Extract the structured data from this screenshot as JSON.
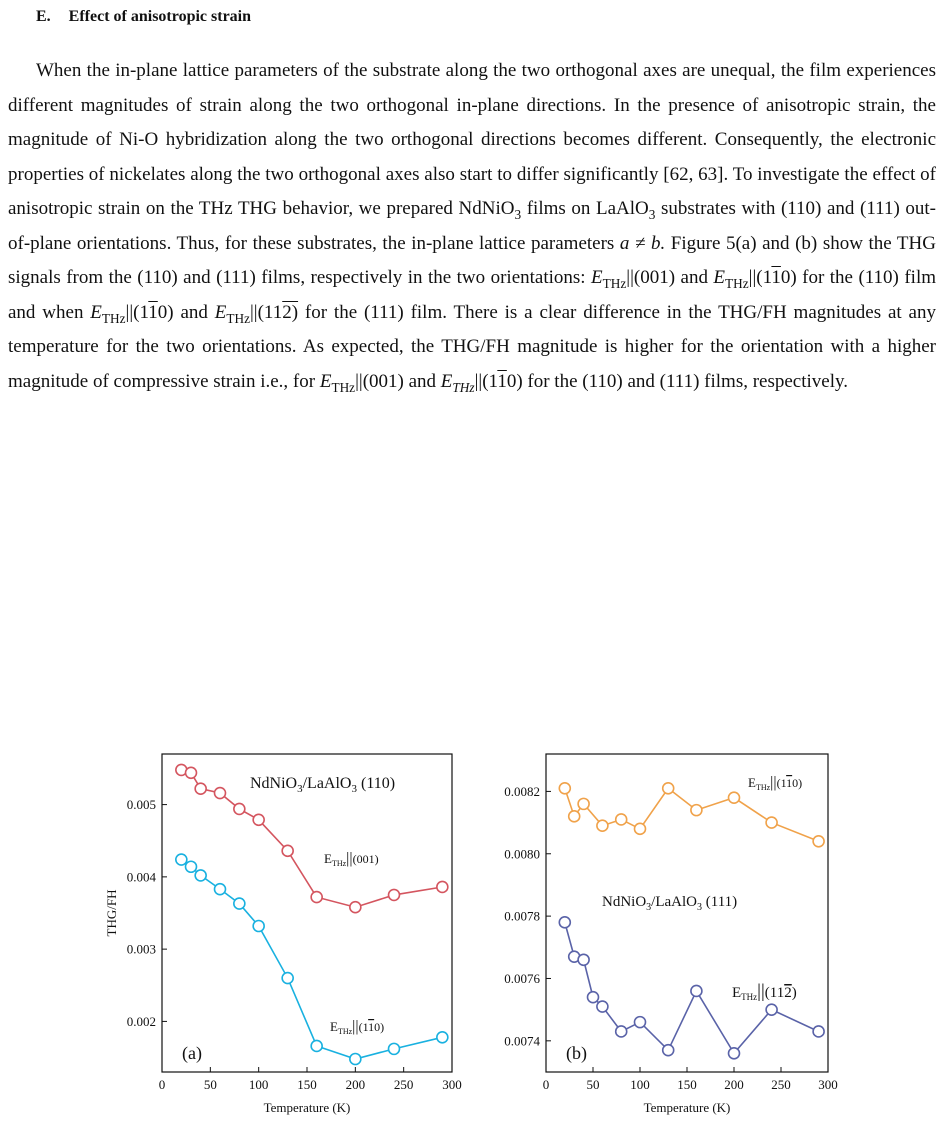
{
  "section": {
    "number": "E.",
    "title": "Effect of anisotropic strain"
  },
  "paragraph": {
    "s1": "When the in-plane lattice parameters of the substrate along the two orthogonal axes are unequal, the film experiences different magnitudes of strain along the two orthogonal in-plane directions. In the presence of anisotropic strain, the magnitude of Ni-O hybridization along the two orthogonal directions becomes different. Consequently, the electronic properties of nickelates along the two orthogonal axes also start to differ significantly [62, 63]. To investigate the effect of anisotropic strain on the THz THG behavior, we prepared NdNiO",
    "s2": " films on LaAlO",
    "s3": " substrates with (110) and (111) out-of-plane orientations. Thus, for these substrates, the in-plane lattice parameters ",
    "s4": " Figure 5(a) and (b) show the THG signals from the (110) and (111) films, respectively in the two orientations: ",
    "s5": "||(001) and ",
    "s6": " for the (110) film and when ",
    "s7": " and ",
    "s8": " for the (111) film. There is a clear difference in the THG/FH magnitudes at any temperature for the two orientations. As expected, the THG/FH magnitude is higher for the orientation with a higher magnitude of compressive strain i.e., for ",
    "s9": "||(001) and ",
    "s10": " for the (110) and (111) films, respectively.",
    "sub3": "3",
    "E": "E",
    "THz": "THz",
    "THz_it": "THz",
    "a_ne_b": "a ≠ b.",
    "par_open": "||(1",
    "bar1": "1",
    "zero_close": "0)",
    "two_close": "2)"
  },
  "chart_data": [
    {
      "type": "line",
      "panel_label": "(a)",
      "xlabel": "Temperature (K)",
      "ylabel": "THG/FH",
      "xlim": [
        0,
        300
      ],
      "ylim": [
        0.0013,
        0.0057
      ],
      "xticks": [
        "0",
        "50",
        "100",
        "150",
        "200",
        "250",
        "300"
      ],
      "yticks": [
        "0.002",
        "0.003",
        "0.004",
        "0.005"
      ],
      "title": "NdNiO3/LaAlO3 (110)",
      "series": [
        {
          "name": "ETHz||(001)",
          "color": "#d4555f",
          "x": [
            20,
            30,
            40,
            60,
            80,
            100,
            130,
            160,
            200,
            240,
            290
          ],
          "y": [
            0.00548,
            0.00544,
            0.00522,
            0.00516,
            0.00494,
            0.00479,
            0.00436,
            0.00372,
            0.00358,
            0.00375,
            0.00386
          ]
        },
        {
          "name": "ETHz||(1-10)",
          "color": "#19b1e0",
          "x": [
            20,
            30,
            40,
            60,
            80,
            100,
            130,
            160,
            200,
            240,
            290
          ],
          "y": [
            0.00424,
            0.00414,
            0.00402,
            0.00383,
            0.00363,
            0.00332,
            0.0026,
            0.00166,
            0.00148,
            0.00162,
            0.00178
          ]
        }
      ]
    },
    {
      "type": "line",
      "panel_label": "(b)",
      "xlabel": "Temperature (K)",
      "ylabel": "",
      "xlim": [
        0,
        300
      ],
      "ylim": [
        0.0073,
        0.00832
      ],
      "xticks": [
        "0",
        "50",
        "100",
        "150",
        "200",
        "250",
        "300"
      ],
      "yticks": [
        "0.0074",
        "0.0076",
        "0.0078",
        "0.0080",
        "0.0082"
      ],
      "title": "NdNiO3/LaAlO3 (111)",
      "series": [
        {
          "name": "ETHz||(1-10)",
          "color": "#f0a24a",
          "x": [
            20,
            30,
            40,
            60,
            80,
            100,
            130,
            160,
            200,
            240,
            290
          ],
          "y": [
            0.00821,
            0.00812,
            0.00816,
            0.00809,
            0.00811,
            0.00808,
            0.00821,
            0.00814,
            0.00818,
            0.0081,
            0.00804
          ]
        },
        {
          "name": "ETHz||(11-2)",
          "color": "#5a63a8",
          "x": [
            20,
            30,
            40,
            50,
            60,
            80,
            100,
            130,
            160,
            200,
            240,
            290
          ],
          "y": [
            0.00778,
            0.00767,
            0.00766,
            0.00754,
            0.00751,
            0.00743,
            0.00746,
            0.00737,
            0.00756,
            0.00736,
            0.0075,
            0.00743
          ]
        }
      ]
    }
  ],
  "fig_labels": {
    "a_title_main": "NdNiO",
    "a_title_sub": "3",
    "a_title_mid": "/LaAlO",
    "a_title_sub2": "3",
    "a_title_end": " (110)",
    "b_title_main": "NdNiO",
    "b_title_sub": "3",
    "b_title_mid": "/LaAlO",
    "b_title_sub2": "3",
    "b_title_end": " (111)",
    "E": "E",
    "THz": "THz",
    "bars": "||",
    "o001": "(001)",
    "o_open": "(1",
    "o_bar1": "1",
    "o_zero": "0)",
    "o_one": "1",
    "o_bar2": "2",
    "o_close": ")"
  }
}
